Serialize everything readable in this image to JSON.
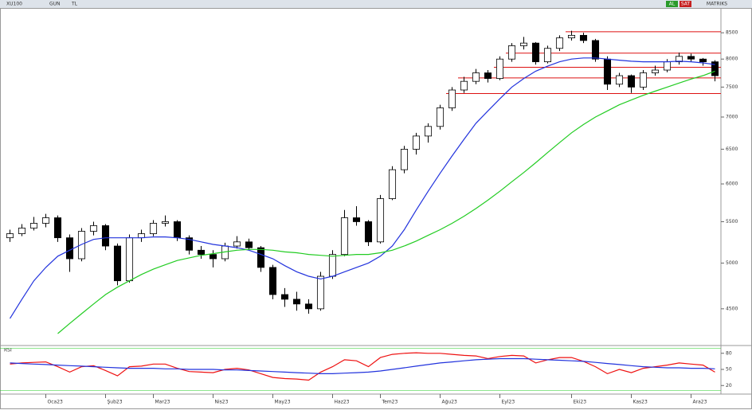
{
  "header": {
    "symbol": "XU100",
    "period": "GUN",
    "currency": "TL",
    "buy": "AL",
    "sell": "SAT",
    "brand": "MATRIKS"
  },
  "chart_data": {
    "type": "candlestick",
    "log_scale": true,
    "categories": [
      null,
      null,
      null,
      "Oca23",
      null,
      null,
      null,
      null,
      "Şub23",
      null,
      null,
      null,
      "Mar23",
      null,
      null,
      null,
      null,
      "Nis23",
      null,
      null,
      null,
      null,
      "May23",
      null,
      null,
      null,
      null,
      "Haz23",
      null,
      null,
      null,
      "Tem23",
      null,
      null,
      null,
      null,
      "Ağu23",
      null,
      null,
      null,
      null,
      "Eyl23",
      null,
      null,
      null,
      null,
      null,
      "Eki23",
      null,
      null,
      null,
      null,
      "Kas23",
      null,
      null,
      null,
      null,
      "Ara23",
      null,
      null
    ],
    "open": [
      5300,
      5350,
      5420,
      5480,
      5550,
      5300,
      5050,
      5380,
      5450,
      5200,
      4800,
      5300,
      5350,
      5480,
      5500,
      5300,
      5150,
      5100,
      5050,
      5200,
      5250,
      5180,
      4950,
      4650,
      4600,
      4550,
      4500,
      4850,
      5100,
      5550,
      5500,
      5250,
      5800,
      6200,
      6500,
      6700,
      6850,
      7150,
      7450,
      7600,
      7750,
      7650,
      8000,
      8250,
      8300,
      7950,
      8200,
      8400,
      8450,
      8350,
      8000,
      7550,
      7700,
      7500,
      7750,
      7800,
      7950,
      8050,
      8000,
      7950
    ],
    "high": [
      5400,
      5470,
      5560,
      5600,
      5580,
      5340,
      5420,
      5500,
      5470,
      5230,
      5340,
      5400,
      5520,
      5580,
      5520,
      5330,
      5200,
      5150,
      5240,
      5320,
      5290,
      5200,
      4980,
      4720,
      4680,
      4600,
      4900,
      5150,
      5650,
      5700,
      5520,
      5850,
      6250,
      6550,
      6750,
      6900,
      7200,
      7500,
      7680,
      7820,
      7800,
      8050,
      8300,
      8420,
      8320,
      8250,
      8450,
      8540,
      8500,
      8380,
      8050,
      7750,
      7720,
      7800,
      7880,
      8000,
      8120,
      8100,
      8020,
      7980
    ],
    "low": [
      5250,
      5320,
      5390,
      5430,
      5250,
      4900,
      5020,
      5330,
      5150,
      4750,
      4780,
      5250,
      5320,
      5440,
      5260,
      5100,
      5050,
      4950,
      5020,
      5170,
      5150,
      4900,
      4600,
      4520,
      4480,
      4450,
      4480,
      4820,
      5080,
      5450,
      5200,
      5230,
      5780,
      6150,
      6420,
      6600,
      6800,
      7100,
      7400,
      7550,
      7580,
      7620,
      7950,
      8180,
      7900,
      7920,
      8150,
      8350,
      8300,
      7950,
      7450,
      7500,
      7400,
      7450,
      7700,
      7760,
      7900,
      7950,
      7880,
      7600
    ],
    "close": [
      5350,
      5420,
      5480,
      5550,
      5300,
      5050,
      5380,
      5450,
      5200,
      4800,
      5300,
      5350,
      5480,
      5500,
      5300,
      5150,
      5100,
      5050,
      5200,
      5250,
      5180,
      4950,
      4650,
      4600,
      4550,
      4500,
      4850,
      5100,
      5550,
      5500,
      5250,
      5800,
      6200,
      6500,
      6700,
      6850,
      7150,
      7450,
      7600,
      7750,
      7650,
      8000,
      8250,
      8300,
      7950,
      8200,
      8400,
      8450,
      8350,
      8000,
      7550,
      7700,
      7500,
      7750,
      7800,
      7950,
      8050,
      8000,
      7950,
      7700
    ],
    "up_color": "#ffffff",
    "down_color": "#000000",
    "series": [
      {
        "color": "#2233dd",
        "values": [
          4400,
          4600,
          4800,
          4950,
          5080,
          5150,
          5220,
          5280,
          5300,
          5300,
          5300,
          5300,
          5310,
          5310,
          5300,
          5280,
          5250,
          5220,
          5200,
          5180,
          5150,
          5100,
          5050,
          4970,
          4900,
          4850,
          4820,
          4850,
          4900,
          4950,
          5000,
          5080,
          5200,
          5400,
          5650,
          5900,
          6150,
          6400,
          6650,
          6900,
          7100,
          7300,
          7500,
          7650,
          7780,
          7870,
          7950,
          8000,
          8020,
          8020,
          8000,
          7980,
          7960,
          7950,
          7950,
          7950,
          7960,
          7950,
          7930,
          7900
        ]
      },
      {
        "color": "#22cc22",
        "values": [
          null,
          null,
          null,
          null,
          4250,
          4350,
          4450,
          4550,
          4650,
          4730,
          4800,
          4870,
          4930,
          4980,
          5030,
          5060,
          5090,
          5110,
          5130,
          5150,
          5160,
          5160,
          5150,
          5130,
          5120,
          5100,
          5090,
          5080,
          5090,
          5100,
          5100,
          5120,
          5150,
          5200,
          5260,
          5330,
          5400,
          5480,
          5570,
          5670,
          5780,
          5900,
          6030,
          6160,
          6300,
          6450,
          6600,
          6750,
          6880,
          7000,
          7100,
          7200,
          7280,
          7360,
          7430,
          7500,
          7570,
          7640,
          7700,
          7780
        ]
      }
    ],
    "levels": [
      8520,
      8110,
      7850,
      7660,
      7390
    ],
    "level_color": "#dd1111",
    "ylim": [
      4150,
      9000
    ],
    "yticks": [
      4500,
      5000,
      5500,
      6000,
      6500,
      7000,
      7500,
      8000,
      8500
    ],
    "indicator": {
      "name": "RSI",
      "ylim": [
        10,
        90
      ],
      "yticks": [
        20,
        50,
        80
      ],
      "series": [
        {
          "color": "#ee1111",
          "values": [
            60,
            62,
            63,
            64,
            55,
            45,
            55,
            57,
            48,
            38,
            55,
            56,
            60,
            60,
            52,
            46,
            45,
            44,
            50,
            52,
            49,
            42,
            35,
            33,
            32,
            30,
            45,
            55,
            68,
            66,
            55,
            72,
            78,
            80,
            81,
            80,
            80,
            78,
            76,
            75,
            70,
            74,
            76,
            75,
            62,
            68,
            72,
            72,
            65,
            55,
            42,
            50,
            44,
            52,
            55,
            58,
            62,
            60,
            58,
            45
          ]
        },
        {
          "color": "#2233dd",
          "values": [
            62,
            61,
            60,
            59,
            58,
            57,
            56,
            55,
            54,
            53,
            52,
            52,
            52,
            51,
            51,
            50,
            50,
            50,
            49,
            49,
            48,
            47,
            46,
            45,
            44,
            43,
            42,
            42,
            43,
            44,
            45,
            47,
            50,
            53,
            56,
            59,
            62,
            64,
            66,
            68,
            69,
            70,
            70,
            70,
            69,
            68,
            67,
            66,
            65,
            63,
            61,
            59,
            57,
            55,
            54,
            53,
            53,
            52,
            52,
            51
          ]
        }
      ]
    }
  }
}
